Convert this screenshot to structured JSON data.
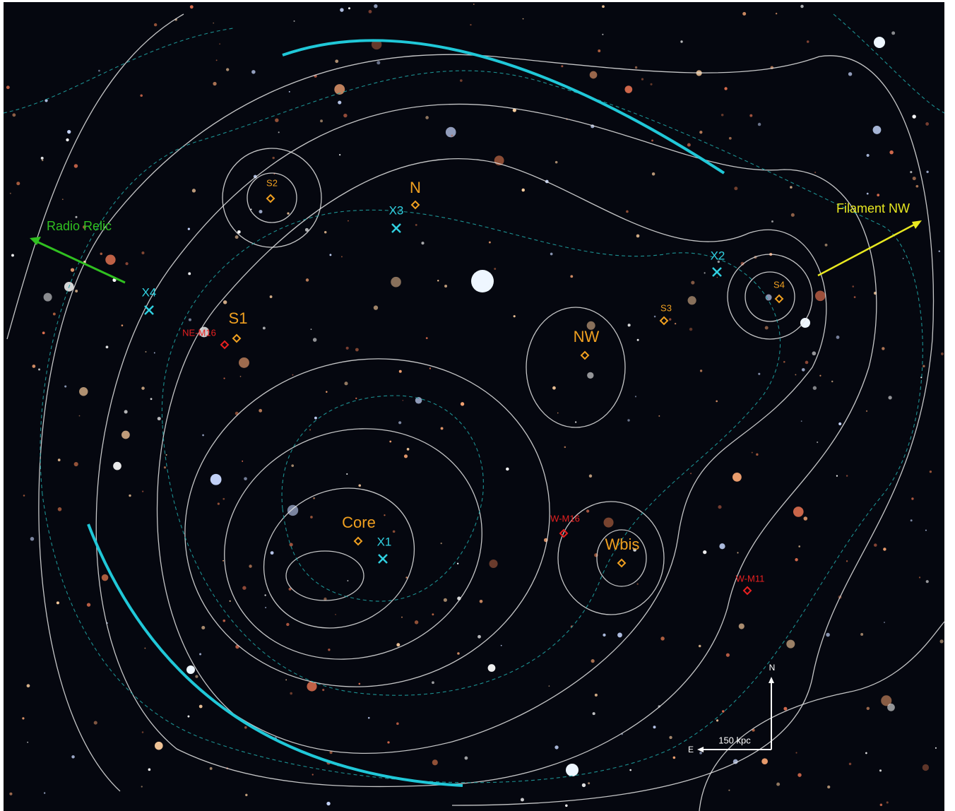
{
  "substructures": [
    "S2",
    "N",
    "S1",
    "S3",
    "NW",
    "S4",
    "Core",
    "Wbis"
  ],
  "xray_peaks": [
    "X1",
    "X2",
    "X3",
    "X4"
  ],
  "galaxies": [
    "NE-M16",
    "W-M16",
    "W-M11"
  ],
  "arrows": {
    "radio_relic": "Radio Relic",
    "filament": "Filament NW"
  },
  "compass": {
    "north": "N",
    "east": "E",
    "scale": "150 kpc"
  }
}
